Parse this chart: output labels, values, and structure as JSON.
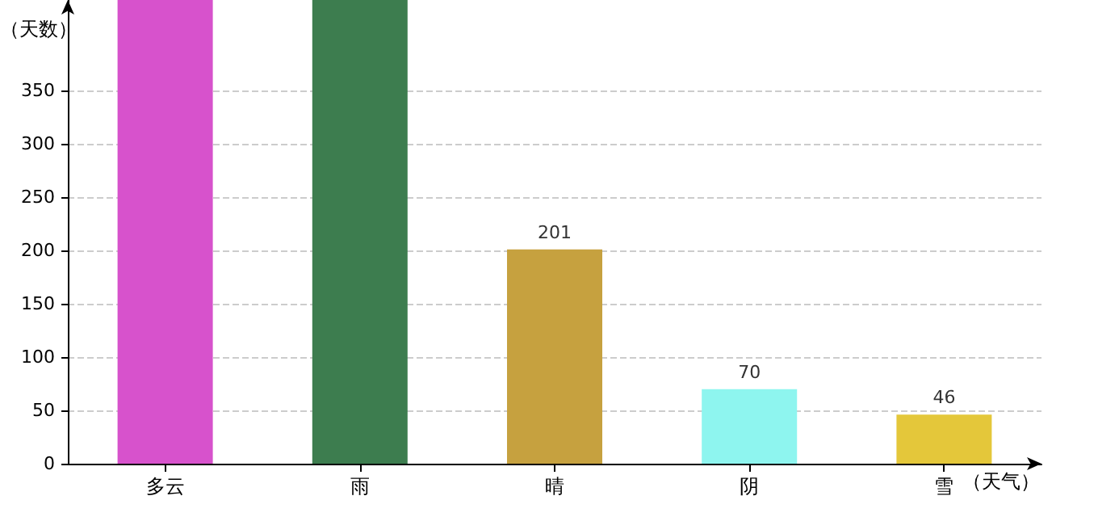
{
  "chart_data": {
    "type": "bar",
    "ylabel": "（天数）",
    "xlabel": "（天气）",
    "categories": [
      "多云",
      "雨",
      "晴",
      "阴",
      "雪"
    ],
    "values": [
      435,
      435,
      201,
      70,
      46
    ],
    "colors": [
      "#d752cc",
      "#3d7d4f",
      "#c6a13f",
      "#8ef5ef",
      "#e4c73a"
    ],
    "value_labels": [
      null,
      null,
      "201",
      "70",
      "46"
    ],
    "ylim": [
      0,
      435
    ],
    "yticks": [
      0,
      50,
      100,
      150,
      200,
      250,
      300,
      350
    ],
    "grid": "y"
  }
}
